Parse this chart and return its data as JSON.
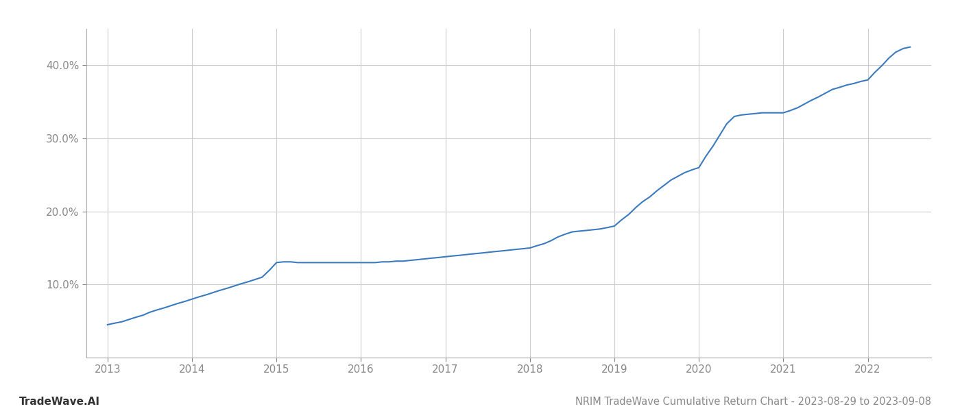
{
  "title": "NRIM TradeWave Cumulative Return Chart - 2023-08-29 to 2023-09-08",
  "watermark": "TradeWave.AI",
  "line_color": "#3a7abf",
  "background_color": "#ffffff",
  "grid_color": "#cccccc",
  "x_years": [
    2013,
    2014,
    2015,
    2016,
    2017,
    2018,
    2019,
    2020,
    2021,
    2022
  ],
  "x_values": [
    2013.0,
    2013.08,
    2013.17,
    2013.25,
    2013.33,
    2013.42,
    2013.5,
    2013.58,
    2013.67,
    2013.75,
    2013.83,
    2013.92,
    2014.0,
    2014.08,
    2014.17,
    2014.25,
    2014.33,
    2014.42,
    2014.5,
    2014.58,
    2014.67,
    2014.75,
    2014.83,
    2014.92,
    2015.0,
    2015.08,
    2015.17,
    2015.25,
    2015.33,
    2015.42,
    2015.5,
    2015.58,
    2015.67,
    2015.75,
    2015.83,
    2015.92,
    2016.0,
    2016.08,
    2016.17,
    2016.25,
    2016.33,
    2016.42,
    2016.5,
    2016.58,
    2016.67,
    2016.75,
    2016.83,
    2016.92,
    2017.0,
    2017.08,
    2017.17,
    2017.25,
    2017.33,
    2017.42,
    2017.5,
    2017.58,
    2017.67,
    2017.75,
    2017.83,
    2017.92,
    2018.0,
    2018.08,
    2018.17,
    2018.25,
    2018.33,
    2018.42,
    2018.5,
    2018.58,
    2018.67,
    2018.75,
    2018.83,
    2018.92,
    2019.0,
    2019.08,
    2019.17,
    2019.25,
    2019.33,
    2019.42,
    2019.5,
    2019.58,
    2019.67,
    2019.75,
    2019.83,
    2019.92,
    2020.0,
    2020.08,
    2020.17,
    2020.25,
    2020.33,
    2020.42,
    2020.5,
    2020.58,
    2020.67,
    2020.75,
    2020.83,
    2020.92,
    2021.0,
    2021.08,
    2021.17,
    2021.25,
    2021.33,
    2021.42,
    2021.5,
    2021.58,
    2021.67,
    2021.75,
    2021.83,
    2021.92,
    2022.0,
    2022.08,
    2022.17,
    2022.25,
    2022.33,
    2022.42,
    2022.5
  ],
  "y_values": [
    4.5,
    4.7,
    4.9,
    5.2,
    5.5,
    5.8,
    6.2,
    6.5,
    6.8,
    7.1,
    7.4,
    7.7,
    8.0,
    8.3,
    8.6,
    8.9,
    9.2,
    9.5,
    9.8,
    10.1,
    10.4,
    10.7,
    11.0,
    12.0,
    13.0,
    13.1,
    13.1,
    13.0,
    13.0,
    13.0,
    13.0,
    13.0,
    13.0,
    13.0,
    13.0,
    13.0,
    13.0,
    13.0,
    13.0,
    13.1,
    13.1,
    13.2,
    13.2,
    13.3,
    13.4,
    13.5,
    13.6,
    13.7,
    13.8,
    13.9,
    14.0,
    14.1,
    14.2,
    14.3,
    14.4,
    14.5,
    14.6,
    14.7,
    14.8,
    14.9,
    15.0,
    15.3,
    15.6,
    16.0,
    16.5,
    16.9,
    17.2,
    17.3,
    17.4,
    17.5,
    17.6,
    17.8,
    18.0,
    18.8,
    19.6,
    20.5,
    21.3,
    22.0,
    22.8,
    23.5,
    24.3,
    24.8,
    25.3,
    25.7,
    26.0,
    27.5,
    29.0,
    30.5,
    32.0,
    33.0,
    33.2,
    33.3,
    33.4,
    33.5,
    33.5,
    33.5,
    33.5,
    33.8,
    34.2,
    34.7,
    35.2,
    35.7,
    36.2,
    36.7,
    37.0,
    37.3,
    37.5,
    37.8,
    38.0,
    39.0,
    40.0,
    41.0,
    41.8,
    42.3,
    42.5
  ],
  "ylim": [
    0,
    45
  ],
  "yticks": [
    10.0,
    20.0,
    30.0,
    40.0
  ],
  "xlim": [
    2012.75,
    2022.75
  ],
  "line_width": 1.5,
  "title_fontsize": 10.5,
  "watermark_fontsize": 11,
  "tick_fontsize": 11,
  "title_color": "#888888",
  "watermark_color": "#333333",
  "tick_color": "#888888",
  "spine_color": "#aaaaaa"
}
